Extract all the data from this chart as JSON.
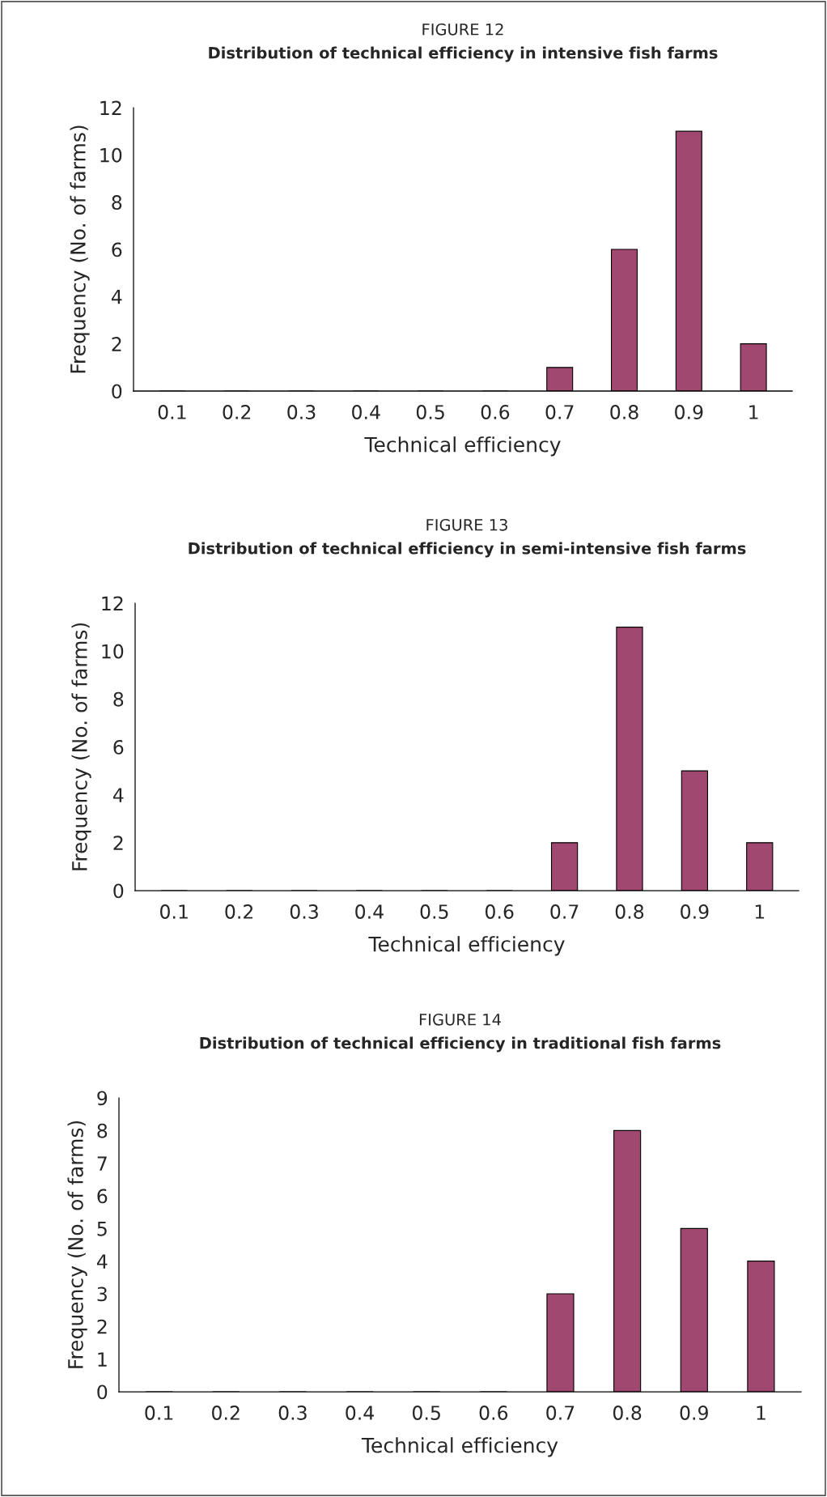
{
  "chart_data": [
    {
      "type": "bar",
      "title": "FIGURE 12",
      "subtitle": "Distribution of technical efficiency in intensive fish farms",
      "xlabel": "Technical efficiency",
      "ylabel": "Frequency (No. of farms)",
      "categories": [
        "0.1",
        "0.2",
        "0.3",
        "0.4",
        "0.5",
        "0.6",
        "0.7",
        "0.8",
        "0.9",
        "1"
      ],
      "values": [
        0,
        0,
        0,
        0,
        0,
        0,
        1,
        6,
        11,
        2
      ],
      "color": "#a0486f",
      "ylim": [
        0,
        12
      ],
      "yticks": [
        0,
        2,
        4,
        6,
        8,
        10,
        12
      ]
    },
    {
      "type": "bar",
      "title": "FIGURE 13",
      "subtitle": "Distribution of technical efficiency in semi-intensive fish farms",
      "xlabel": "Technical efficiency",
      "ylabel": "Frequency (No. of farms)",
      "categories": [
        "0.1",
        "0.2",
        "0.3",
        "0.4",
        "0.5",
        "0.6",
        "0.7",
        "0.8",
        "0.9",
        "1"
      ],
      "values": [
        0,
        0,
        0,
        0,
        0,
        0,
        2,
        11,
        5,
        2
      ],
      "color": "#a0486f",
      "ylim": [
        0,
        12
      ],
      "yticks": [
        0,
        2,
        4,
        6,
        8,
        10,
        12
      ]
    },
    {
      "type": "bar",
      "title": "FIGURE 14",
      "subtitle": "Distribution of technical efficiency in traditional fish farms",
      "xlabel": "Technical efficiency",
      "ylabel": "Frequency (No. of farms)",
      "categories": [
        "0.1",
        "0.2",
        "0.3",
        "0.4",
        "0.5",
        "0.6",
        "0.7",
        "0.8",
        "0.9",
        "1"
      ],
      "values": [
        0,
        0,
        0,
        0,
        0,
        0,
        3,
        8,
        5,
        4
      ],
      "color": "#a0486f",
      "ylim": [
        0,
        9
      ],
      "yticks": [
        0,
        1,
        2,
        3,
        4,
        5,
        6,
        7,
        8,
        9
      ]
    }
  ]
}
